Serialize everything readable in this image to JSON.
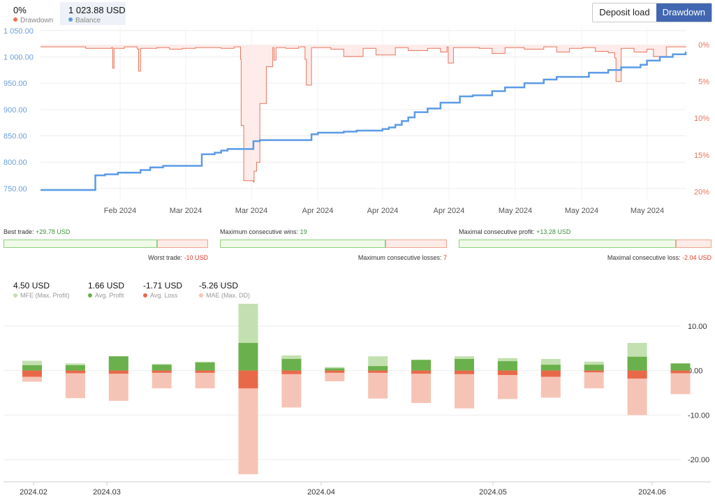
{
  "header": {
    "drawdown_value": "0%",
    "drawdown_label": "Drawdown",
    "balance_value": "1 023.88 USD",
    "balance_label": "Balance",
    "buttons": {
      "deposit_load": "Deposit load",
      "drawdown": "Drawdown"
    }
  },
  "colors": {
    "balance": "#5b9be6",
    "drawdown": "#e8735a",
    "drawdown_fill": "#fdecea",
    "mfe": "#c3e0b0",
    "avg_profit": "#6ab04c",
    "avg_loss": "#e8694a",
    "mae": "#f6c4b6"
  },
  "stats": {
    "best_trade_label": "Best trade:",
    "best_trade_value": "+29.78 USD",
    "worst_trade_label": "Worst trade:",
    "worst_trade_value": "-10 USD",
    "max_cons_wins_label": "Maximum consecutive wins:",
    "max_cons_wins_value": "19",
    "max_cons_losses_label": "Maximum consecutive losses:",
    "max_cons_losses_value": "7",
    "max_cons_profit_label": "Maximal consecutive profit:",
    "max_cons_profit_value": "+13.28 USD",
    "max_cons_loss_label": "Maximal consecutive loss:",
    "max_cons_loss_value": "-2.04 USD",
    "best_trade_share": 0.75,
    "max_cons_wins_share": 0.73,
    "max_cons_profit_share": 0.86
  },
  "mfe_legend": {
    "mfe_value": "4.50 USD",
    "mfe_label": "MFE (Max. Profit)",
    "avg_profit_value": "1.66 USD",
    "avg_profit_label": "Avg. Profit",
    "avg_loss_value": "-1.71 USD",
    "avg_loss_label": "Avg. Loss",
    "mae_value": "-5.26 USD",
    "mae_label": "MAE (Max. DD)"
  },
  "chart_data": [
    {
      "type": "line",
      "x_tick_labels": [
        "Feb 2024",
        "Mar 2024",
        "Mar 2024",
        "Apr 2024",
        "Apr 2024",
        "Apr 2024",
        "May 2024",
        "May 2024",
        "May 2024"
      ],
      "y_left_ticks": [
        "1 050.00",
        "1 000.00",
        "950.00",
        "900.00",
        "850.00",
        "800.00",
        "750.00"
      ],
      "y_left_range": [
        730,
        1055
      ],
      "y_right_ticks": [
        "0%",
        "5%",
        "10%",
        "15%",
        "20%"
      ],
      "y_right_range": [
        0,
        21
      ],
      "grid": true,
      "series": [
        {
          "name": "Balance",
          "axis": "left",
          "x": [
            0,
            0.08,
            0.085,
            0.1,
            0.12,
            0.155,
            0.17,
            0.19,
            0.25,
            0.27,
            0.28,
            0.29,
            0.33,
            0.34,
            0.42,
            0.43,
            0.47,
            0.49,
            0.53,
            0.54,
            0.55,
            0.56,
            0.57,
            0.58,
            0.6,
            0.62,
            0.65,
            0.67,
            0.7,
            0.72,
            0.75,
            0.78,
            0.8,
            0.85,
            0.88,
            0.9,
            0.93,
            0.94,
            0.96,
            0.98,
            1.0
          ],
          "y": [
            747,
            747,
            775,
            777,
            780,
            785,
            790,
            793,
            815,
            818,
            822,
            825,
            840,
            842,
            853,
            856,
            858,
            860,
            863,
            866,
            871,
            878,
            885,
            895,
            902,
            913,
            925,
            927,
            935,
            942,
            950,
            957,
            962,
            970,
            975,
            980,
            985,
            993,
            1000,
            1005,
            1010
          ]
        },
        {
          "name": "Drawdown",
          "axis": "right",
          "x": [
            0,
            0.05,
            0.07,
            0.11,
            0.112,
            0.114,
            0.13,
            0.15,
            0.152,
            0.155,
            0.18,
            0.2,
            0.22,
            0.24,
            0.28,
            0.3,
            0.31,
            0.311,
            0.315,
            0.33,
            0.331,
            0.335,
            0.34,
            0.35,
            0.36,
            0.362,
            0.365,
            0.38,
            0.4,
            0.41,
            0.412,
            0.42,
            0.45,
            0.47,
            0.5,
            0.52,
            0.55,
            0.57,
            0.6,
            0.62,
            0.63,
            0.632,
            0.64,
            0.68,
            0.7,
            0.72,
            0.75,
            0.78,
            0.8,
            0.82,
            0.84,
            0.86,
            0.88,
            0.89,
            0.892,
            0.9,
            0.92,
            0.94,
            0.95,
            0.97,
            1.0
          ],
          "y": [
            0.3,
            0.3,
            0.5,
            0.4,
            3.2,
            0.5,
            0.3,
            0.6,
            3.6,
            0.5,
            0.4,
            0.6,
            0.5,
            0.4,
            0.5,
            0.3,
            2.0,
            11.0,
            18.5,
            18.7,
            17.2,
            16.0,
            8.0,
            3.0,
            0.4,
            2.1,
            0.4,
            0.5,
            0.3,
            2.0,
            5.5,
            0.4,
            0.6,
            1.6,
            0.5,
            1.4,
            0.4,
            0.8,
            0.5,
            1.0,
            0.3,
            2.5,
            0.4,
            0.5,
            1.2,
            0.4,
            0.6,
            0.3,
            1.0,
            0.5,
            0.4,
            0.9,
            1.1,
            1.8,
            5.0,
            0.5,
            1.0,
            0.6,
            1.6,
            0.3,
            0.2
          ]
        }
      ]
    },
    {
      "type": "bar",
      "x_tick_labels": [
        "2024.02",
        "2024.03",
        "2024.04",
        "2024.05",
        "2024.06"
      ],
      "y_ticks": [
        "10.00",
        "0.00",
        "-10.00",
        "-20.00"
      ],
      "ylim": [
        -25,
        15
      ],
      "grid": true,
      "series": [
        {
          "name": "MFE (Max. Profit)",
          "values": [
            2.2,
            1.6,
            3.2,
            1.5,
            2.0,
            15.0,
            3.4,
            0.8,
            3.2,
            2.4,
            3.2,
            2.8,
            2.6,
            2.0,
            6.2,
            1.6
          ]
        },
        {
          "name": "Avg. Profit",
          "values": [
            1.2,
            1.2,
            3.2,
            1.3,
            1.8,
            6.2,
            2.6,
            0.5,
            1.0,
            2.4,
            2.6,
            2.1,
            1.3,
            1.3,
            3.1,
            1.6
          ]
        },
        {
          "name": "Avg. Loss",
          "values": [
            -1.4,
            -0.6,
            -0.7,
            -0.5,
            -0.5,
            -4.0,
            -0.8,
            -0.5,
            -0.5,
            -0.7,
            -0.8,
            -1.0,
            -1.4,
            -0.4,
            -1.8,
            -0.6
          ]
        },
        {
          "name": "MAE (Max. DD)",
          "values": [
            -2.5,
            -6.2,
            -6.8,
            -4.0,
            -4.0,
            -23.3,
            -8.3,
            -2.4,
            -6.3,
            -7.3,
            -8.5,
            -6.4,
            -6.1,
            -4.0,
            -10.0,
            -5.3
          ]
        }
      ]
    }
  ]
}
